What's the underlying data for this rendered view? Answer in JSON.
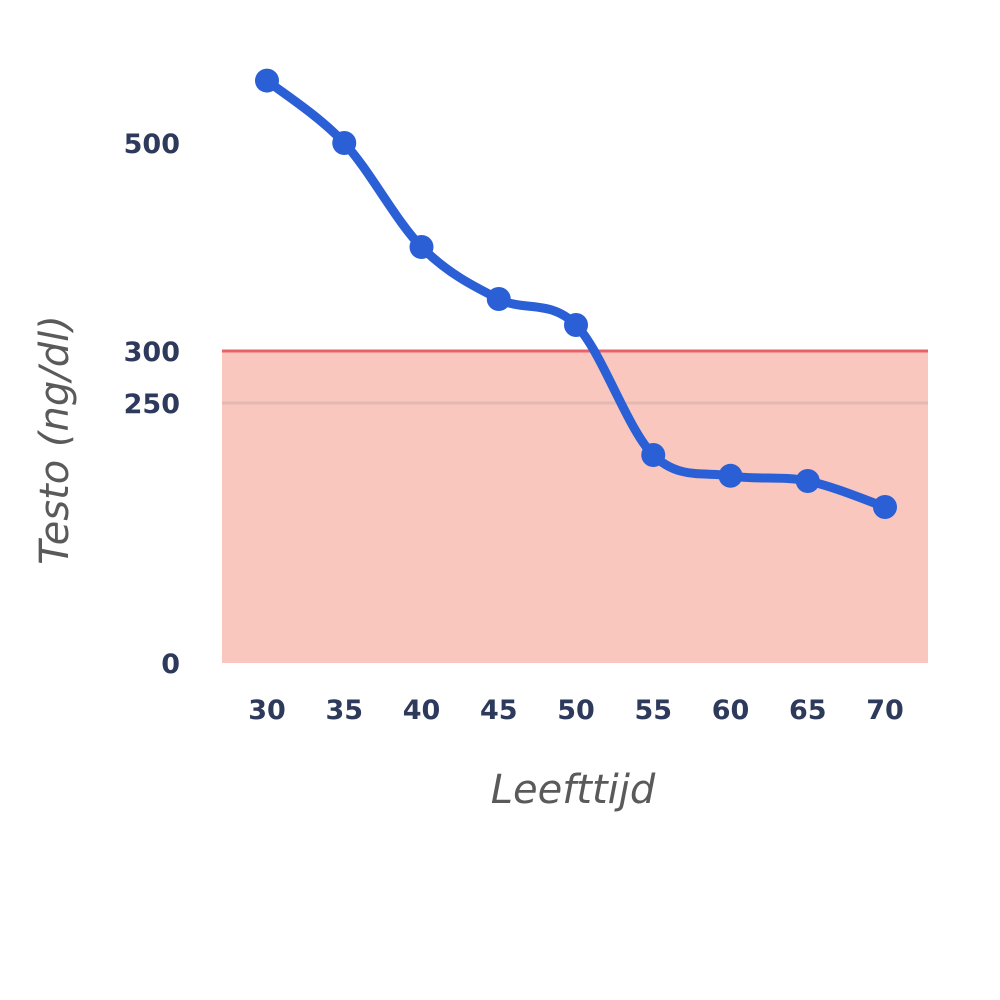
{
  "chart_data": {
    "type": "line",
    "xlabel": "Leefttijd",
    "ylabel": "Testo (ng/dl)",
    "x": [
      30,
      35,
      40,
      45,
      50,
      55,
      60,
      65,
      70
    ],
    "xtick_labels": [
      "30",
      "35",
      "40",
      "45",
      "50",
      "55",
      "60",
      "65",
      "70"
    ],
    "ytick_values": [
      0,
      250,
      300,
      500
    ],
    "ytick_labels": [
      "0",
      "250",
      "300",
      "500"
    ],
    "ylim": [
      0,
      620
    ],
    "series": [
      {
        "values": [
          560,
          500,
          400,
          350,
          325,
          200,
          180,
          175,
          150
        ],
        "color": "#2a5fd6"
      }
    ],
    "shaded_region": {
      "from": 0,
      "to": 300,
      "fill_color": "#f9c7bd",
      "border_color": "#e8626a"
    },
    "reference_line": {
      "value": 250,
      "color": "#e3b9b3"
    },
    "grid": false,
    "legend": "none"
  }
}
